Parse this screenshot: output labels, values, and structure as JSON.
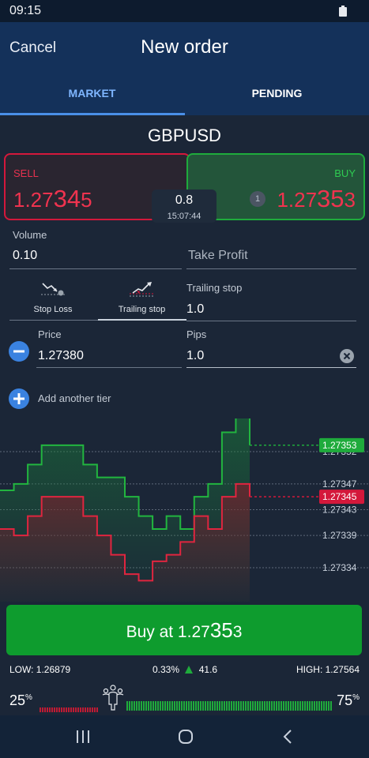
{
  "status": {
    "time": "09:15"
  },
  "header": {
    "cancel_label": "Cancel",
    "title": "New order"
  },
  "tabs": [
    {
      "label": "MARKET"
    },
    {
      "label": "PENDING"
    }
  ],
  "symbol": "GBPUSD",
  "sell": {
    "label": "SELL",
    "price_prefix": "1.27",
    "price_big": "34",
    "price_last": "5"
  },
  "buy": {
    "label": "BUY",
    "price_prefix": "1.27",
    "price_big": "35",
    "price_last": "3",
    "badge": "1"
  },
  "spread": {
    "value": "0.8",
    "time": "15:07:44"
  },
  "volume": {
    "label": "Volume",
    "value": "0.10"
  },
  "take_profit": {
    "placeholder": "Take Profit"
  },
  "stop_tabs": [
    {
      "label": "Stop Loss"
    },
    {
      "label": "Trailing stop"
    }
  ],
  "trailing_stop": {
    "label": "Trailing stop",
    "value": "1.0"
  },
  "tier": {
    "price_label": "Price",
    "price_value": "1.27380",
    "pips_label": "Pips",
    "pips_value": "1.0"
  },
  "add_tier_label": "Add another tier",
  "chart_data": {
    "type": "line",
    "y_ticks": [
      "1.27352",
      "1.27347",
      "1.27343",
      "1.27339",
      "1.27334"
    ],
    "current_buy": "1.27353",
    "current_sell": "1.27345",
    "series": [
      {
        "values": [
          1.27346,
          1.27347,
          1.2735,
          1.27353,
          1.27353,
          1.27353,
          1.2735,
          1.27348,
          1.27348,
          1.27345,
          1.27342,
          1.2734,
          1.27342,
          1.2734,
          1.27345,
          1.27347,
          1.27355,
          1.27358,
          1.27353
        ]
      },
      {
        "values": [
          1.2734,
          1.27339,
          1.27342,
          1.27345,
          1.27345,
          1.27345,
          1.27342,
          1.27339,
          1.27336,
          1.27333,
          1.27332,
          1.27335,
          1.27336,
          1.27338,
          1.27342,
          1.2734,
          1.27345,
          1.27347,
          1.27345
        ]
      }
    ]
  },
  "buy_button": {
    "prefix": "Buy at 1.27",
    "big": "35",
    "last": "3"
  },
  "stats": {
    "low": "LOW:  1.26879",
    "change": "0.33%",
    "change_value": "41.6",
    "high": "HIGH:  1.27564"
  },
  "sentiment": {
    "sell_pct": "25",
    "buy_pct": "75",
    "pct_sign": "%",
    "sell_fraction": 0.25
  },
  "colors": {
    "buy": "#1fab3c",
    "sell": "#d4183b",
    "accent": "#4a8fe8"
  }
}
